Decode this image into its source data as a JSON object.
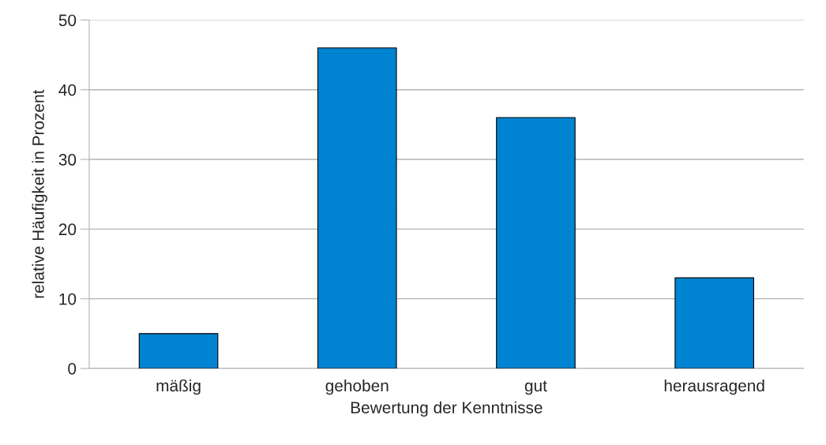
{
  "chart_data": {
    "type": "bar",
    "xlabel": "Bewertung der Kenntnisse",
    "ylabel": "relative Häufigkeit in Prozent",
    "categories": [
      "mäßig",
      "gehoben",
      "gut",
      "herausragend"
    ],
    "values": [
      5,
      46,
      36,
      13
    ],
    "color": "#0084d1",
    "ylim": [
      0,
      50
    ],
    "yticks": [
      0,
      10,
      20,
      30,
      40,
      50
    ],
    "grid": "y",
    "legend": false
  }
}
